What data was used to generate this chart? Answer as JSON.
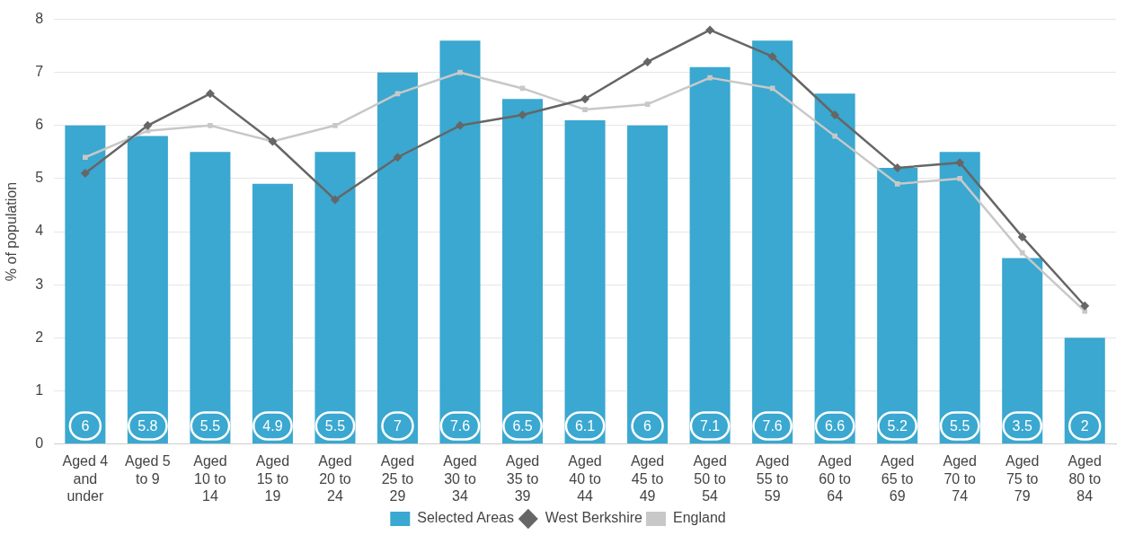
{
  "chart_data": {
    "type": "bar",
    "ylabel": "% of population",
    "categories": [
      "Aged 4 and under",
      "Aged 5 to 9",
      "Aged 10 to 14",
      "Aged 15 to 19",
      "Aged 20 to 24",
      "Aged 25 to 29",
      "Aged 30 to 34",
      "Aged 35 to 39",
      "Aged 40 to 44",
      "Aged 45 to 49",
      "Aged 50 to 54",
      "Aged 55 to 59",
      "Aged 60 to 64",
      "Aged 65 to 69",
      "Aged 70 to 74",
      "Aged 75 to 79",
      "Aged 80 to 84"
    ],
    "series": [
      {
        "name": "Selected Areas",
        "color": "#3aa8d0",
        "values": [
          6,
          5.8,
          5.5,
          4.9,
          5.5,
          7,
          7.6,
          6.5,
          6.1,
          6,
          7.1,
          7.6,
          6.6,
          5.2,
          5.5,
          3.5,
          2
        ],
        "data_labels": true
      },
      {
        "name": "West Berkshire",
        "type": "line",
        "color": "#666666",
        "marker": "diamond",
        "values": [
          5.1,
          6.0,
          6.6,
          5.7,
          4.6,
          5.4,
          6.0,
          6.2,
          6.5,
          7.2,
          7.8,
          7.3,
          6.2,
          5.2,
          5.3,
          3.9,
          2.6
        ]
      },
      {
        "name": "England",
        "type": "line",
        "color": "#c8c8c8",
        "marker": "square",
        "values": [
          5.4,
          5.9,
          6.0,
          5.7,
          6.0,
          6.6,
          7.0,
          6.7,
          6.3,
          6.4,
          6.9,
          6.7,
          5.8,
          4.9,
          5.0,
          3.6,
          2.5
        ]
      }
    ],
    "ylim": [
      0,
      8
    ],
    "yticks": [
      0,
      1,
      2,
      3,
      4,
      5,
      6,
      7,
      8
    ],
    "grid": "y",
    "legend": "bottom"
  }
}
